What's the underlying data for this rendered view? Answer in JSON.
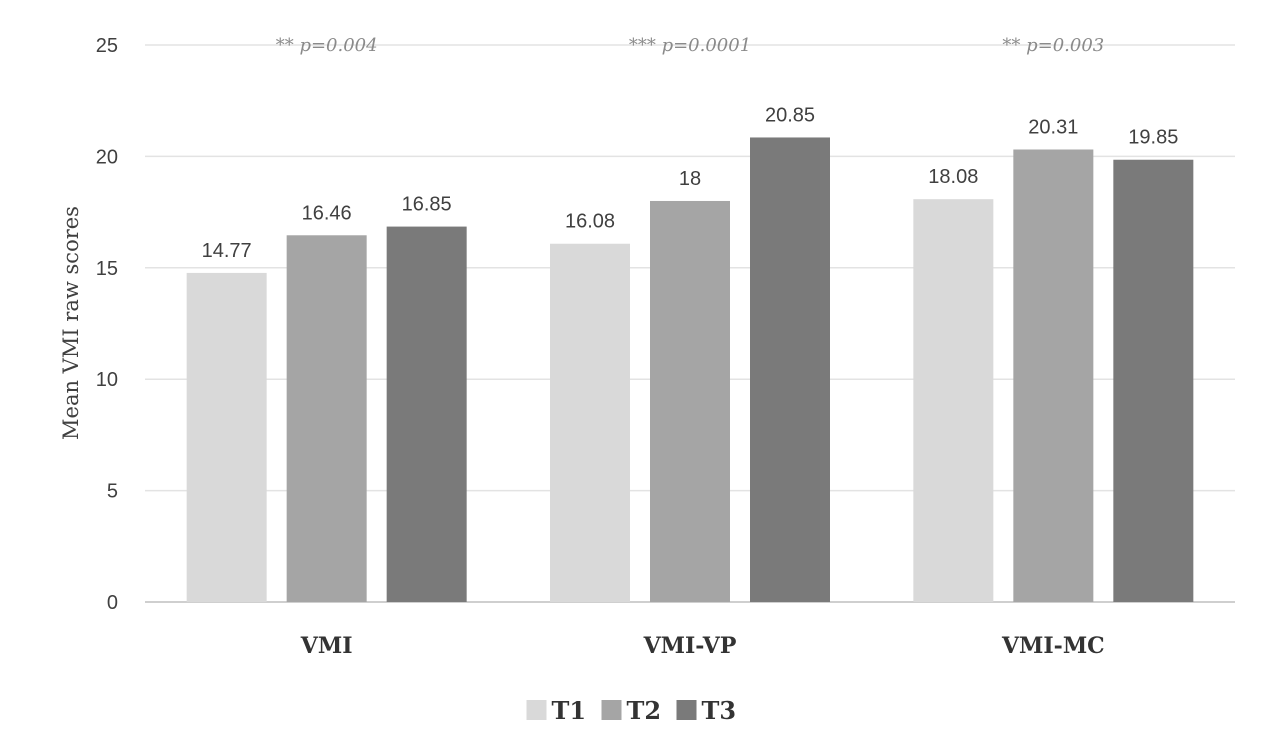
{
  "chart_data": {
    "type": "bar",
    "categories": [
      "VMI",
      "VMI-VP",
      "VMI-MC"
    ],
    "series": [
      {
        "name": "T1",
        "values": [
          14.77,
          16.08,
          18.08
        ],
        "color": "#d9d9d9"
      },
      {
        "name": "T2",
        "values": [
          16.46,
          18,
          20.31
        ],
        "color": "#a5a5a5"
      },
      {
        "name": "T3",
        "values": [
          16.85,
          20.85,
          19.85
        ],
        "color": "#7a7a7a"
      }
    ],
    "value_labels": [
      [
        "14.77",
        "16.08",
        "18.08"
      ],
      [
        "16.46",
        "18",
        "20.31"
      ],
      [
        "16.85",
        "20.85",
        "19.85"
      ]
    ],
    "annotations": [
      "** p=0.004",
      "*** p=0.0001",
      "** p=0.003"
    ],
    "ylabel": "Mean VMI raw scores",
    "xlabel": "",
    "ylim": [
      0,
      25
    ],
    "yticks": [
      "0",
      "5",
      "10",
      "15",
      "20",
      "25"
    ],
    "grid": true,
    "legend_position": "bottom"
  }
}
